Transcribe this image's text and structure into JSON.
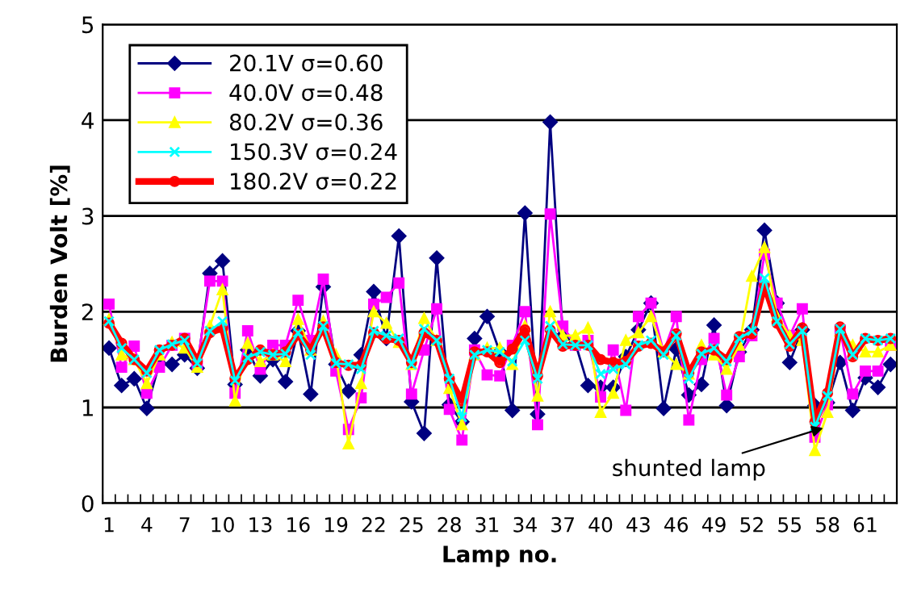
{
  "chart_data": {
    "type": "line",
    "xlabel": "Lamp no.",
    "ylabel": "Burden Volt [%]",
    "categories": [
      "1",
      null,
      null,
      "4",
      null,
      null,
      "7",
      null,
      null,
      "10",
      null,
      null,
      "13",
      null,
      null,
      "16",
      null,
      null,
      "19",
      null,
      null,
      "22",
      null,
      null,
      "25",
      null,
      null,
      "28",
      null,
      null,
      "31",
      null,
      null,
      "34",
      null,
      null,
      "37",
      null,
      null,
      "40",
      null,
      null,
      "43",
      null,
      null,
      "46",
      null,
      null,
      "49",
      null,
      null,
      "52",
      null,
      null,
      "55",
      null,
      null,
      "58",
      null,
      null,
      "61",
      null,
      null
    ],
    "series": [
      {
        "name": "20.1V σ=0.60",
        "color": "#000080",
        "marker": "diamond",
        "values": [
          1.62,
          1.23,
          1.3,
          0.99,
          1.46,
          1.45,
          1.55,
          1.41,
          2.4,
          2.53,
          1.24,
          1.6,
          1.33,
          1.5,
          1.27,
          1.8,
          1.14,
          2.26,
          1.45,
          1.17,
          1.55,
          2.21,
          1.72,
          2.79,
          1.06,
          0.73,
          2.56,
          1.03,
          0.85,
          1.72,
          1.95,
          1.58,
          0.97,
          3.03,
          0.93,
          3.98,
          1.75,
          1.67,
          1.23,
          1.21,
          1.21,
          1.53,
          1.81,
          2.09,
          0.99,
          1.61,
          1.13,
          1.24,
          1.86,
          1.02,
          1.58,
          1.81,
          2.85,
          2.09,
          1.47,
          1.81,
          1.02,
          1.05,
          1.47,
          0.97,
          1.31,
          1.21,
          1.45
        ]
      },
      {
        "name": "40.0V σ=0.48",
        "color": "#ff00ff",
        "marker": "square",
        "values": [
          2.08,
          1.42,
          1.64,
          1.15,
          1.42,
          1.65,
          1.72,
          1.45,
          2.32,
          2.32,
          1.15,
          1.8,
          1.4,
          1.65,
          1.65,
          2.12,
          1.7,
          2.34,
          1.38,
          0.77,
          1.1,
          2.08,
          2.15,
          2.3,
          1.14,
          1.6,
          2.03,
          0.98,
          0.66,
          1.6,
          1.34,
          1.33,
          1.65,
          2.0,
          0.82,
          3.02,
          1.85,
          1.65,
          1.7,
          1.11,
          1.6,
          0.97,
          1.95,
          2.09,
          1.58,
          1.95,
          0.87,
          1.5,
          1.72,
          1.13,
          1.53,
          1.75,
          2.6,
          2.09,
          1.75,
          2.03,
          0.69,
          1.03,
          1.81,
          1.14,
          1.38,
          1.38,
          1.65
        ]
      },
      {
        "name": "80.2V σ=0.36",
        "color": "#ffff00",
        "marker": "triangle",
        "values": [
          1.92,
          1.55,
          1.5,
          1.25,
          1.55,
          1.68,
          1.62,
          1.42,
          1.85,
          2.23,
          1.07,
          1.67,
          1.48,
          1.55,
          1.48,
          1.92,
          1.6,
          1.9,
          1.55,
          0.62,
          1.25,
          2.0,
          1.88,
          1.68,
          1.45,
          1.93,
          1.7,
          1.2,
          0.82,
          1.55,
          1.62,
          1.62,
          1.45,
          1.85,
          1.12,
          2.0,
          1.75,
          1.75,
          1.83,
          0.95,
          1.15,
          1.7,
          1.78,
          1.95,
          1.58,
          1.45,
          1.35,
          1.65,
          1.55,
          1.4,
          1.65,
          2.37,
          2.67,
          1.95,
          1.75,
          1.7,
          0.55,
          0.95,
          1.8,
          1.65,
          1.58,
          1.58,
          1.65
        ]
      },
      {
        "name": "150.3V σ=0.24",
        "color": "#00ffff",
        "marker": "cross",
        "values": [
          1.9,
          1.62,
          1.5,
          1.36,
          1.6,
          1.66,
          1.7,
          1.46,
          1.8,
          1.9,
          1.28,
          1.52,
          1.58,
          1.55,
          1.56,
          1.78,
          1.55,
          1.85,
          1.46,
          1.45,
          1.4,
          1.8,
          1.75,
          1.72,
          1.45,
          1.82,
          1.7,
          1.3,
          0.9,
          1.55,
          1.6,
          1.58,
          1.48,
          1.7,
          1.3,
          1.85,
          1.66,
          1.65,
          1.65,
          1.35,
          1.4,
          1.45,
          1.65,
          1.7,
          1.55,
          1.75,
          1.3,
          1.56,
          1.62,
          1.48,
          1.72,
          1.8,
          2.35,
          1.9,
          1.66,
          1.8,
          0.8,
          1.12,
          1.82,
          1.55,
          1.72,
          1.7,
          1.72
        ]
      },
      {
        "name": "180.2V σ=0.22",
        "color": "#ff0000",
        "marker": "circle",
        "values": [
          1.88,
          1.67,
          1.5,
          1.38,
          1.6,
          1.65,
          1.72,
          1.48,
          1.78,
          1.83,
          1.3,
          1.5,
          1.6,
          1.55,
          1.58,
          1.76,
          1.6,
          1.84,
          1.47,
          1.44,
          1.44,
          1.78,
          1.72,
          1.7,
          1.47,
          1.78,
          1.7,
          1.3,
          1.07,
          1.58,
          1.58,
          1.47,
          1.61,
          1.81,
          1.33,
          1.81,
          1.64,
          1.65,
          1.65,
          1.5,
          1.47,
          1.48,
          1.64,
          1.67,
          1.58,
          1.77,
          1.36,
          1.58,
          1.6,
          1.5,
          1.74,
          1.77,
          2.28,
          1.88,
          1.64,
          1.83,
          0.85,
          1.15,
          1.84,
          1.53,
          1.72,
          1.7,
          1.72
        ]
      }
    ],
    "ylim": [
      0,
      5
    ],
    "yticks": [
      0,
      1,
      2,
      3,
      4,
      5
    ],
    "grid": "y",
    "legend": "top left",
    "annotations": [
      {
        "text": "shunted lamp",
        "x": "58",
        "y": 0.8
      }
    ]
  }
}
